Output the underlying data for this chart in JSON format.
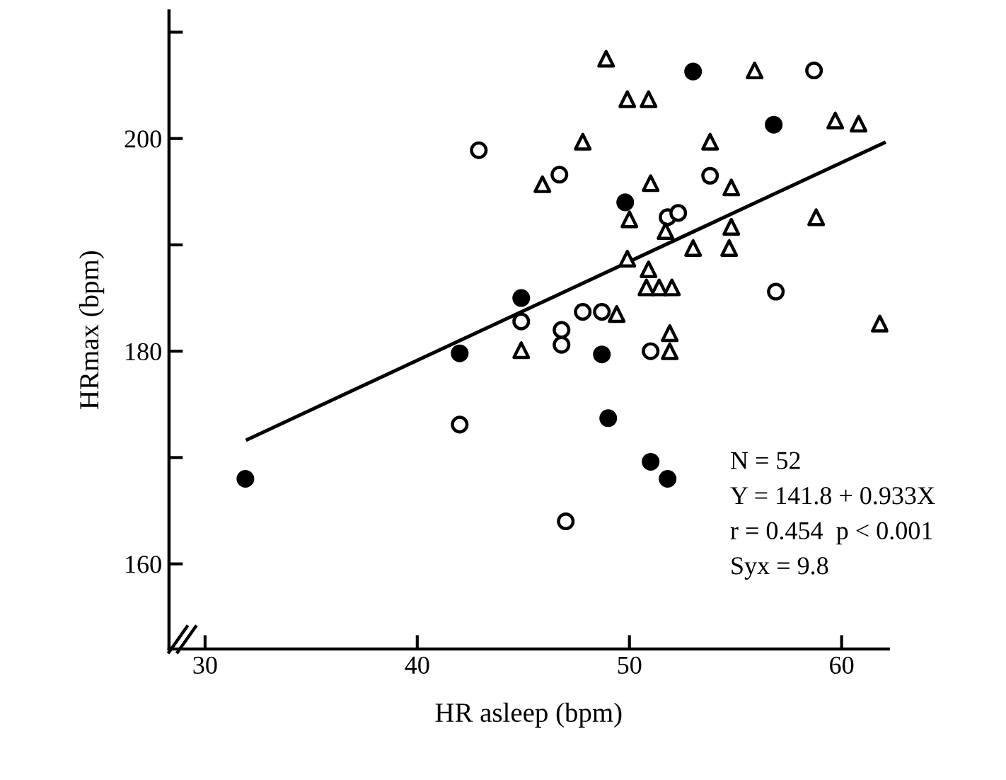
{
  "chart_data": {
    "type": "scatter",
    "xlabel": "HR asleep (bpm)",
    "ylabel": "HRmax (bpm)",
    "xlim": [
      28.3,
      62.2
    ],
    "ylim": [
      152,
      212
    ],
    "xticks": [
      30,
      40,
      50,
      60
    ],
    "yticks": [
      160,
      {
        "value": 170,
        "label": null
      },
      180,
      {
        "value": 190,
        "label": null
      },
      200,
      {
        "value": 210,
        "label": null
      }
    ],
    "grid": false,
    "legend": false,
    "series": [
      {
        "marker": "circle",
        "color": "#000000",
        "x": [
          31.9,
          42.0,
          44.9,
          53.0,
          56.8,
          49.8,
          48.7,
          49.0,
          51.0,
          51.8
        ],
        "values": [
          168.0,
          179.8,
          185.0,
          206.3,
          201.3,
          194.0,
          179.7,
          173.7,
          169.6,
          168.0
        ]
      },
      {
        "marker": "circle",
        "color": "#ffffff",
        "x": [
          42.9,
          46.7,
          44.9,
          46.8,
          46.8,
          47.8,
          42.0,
          47.0,
          58.7,
          53.8,
          51.8,
          52.3,
          48.7,
          51.0,
          56.9
        ],
        "values": [
          198.9,
          196.6,
          182.8,
          182.0,
          180.6,
          183.7,
          173.1,
          164.0,
          206.4,
          196.5,
          192.6,
          193.0,
          183.7,
          180.0,
          185.6
        ]
      },
      {
        "marker": "triangle",
        "color": "#ffffff",
        "x": [
          45.9,
          44.9,
          47.8,
          48.9,
          49.9,
          50.9,
          55.9,
          59.7,
          60.8,
          53.8,
          51.0,
          54.8,
          50.0,
          51.7,
          54.8,
          58.8,
          53.0,
          54.7,
          49.9,
          50.9,
          50.8,
          51.4,
          52.0,
          49.4,
          51.9,
          51.9,
          61.8
        ],
        "values": [
          195.7,
          180.1,
          199.7,
          207.5,
          203.7,
          203.7,
          206.4,
          201.7,
          201.4,
          199.7,
          195.8,
          195.4,
          192.4,
          191.3,
          191.7,
          192.6,
          189.7,
          189.7,
          188.7,
          187.7,
          186.0,
          186.0,
          186.0,
          183.5,
          181.7,
          180.0,
          182.6
        ]
      },
      {
        "type": "line",
        "marker": "none",
        "line_style": "solid",
        "color": "#000000",
        "x": [
          32,
          62
        ],
        "values": [
          171.7,
          199.6
        ]
      }
    ],
    "annotations": [
      "N = 52",
      "Y = 141.8 + 0.933X",
      "r = 0.454  p < 0.001",
      "Syx = 9.8"
    ]
  }
}
